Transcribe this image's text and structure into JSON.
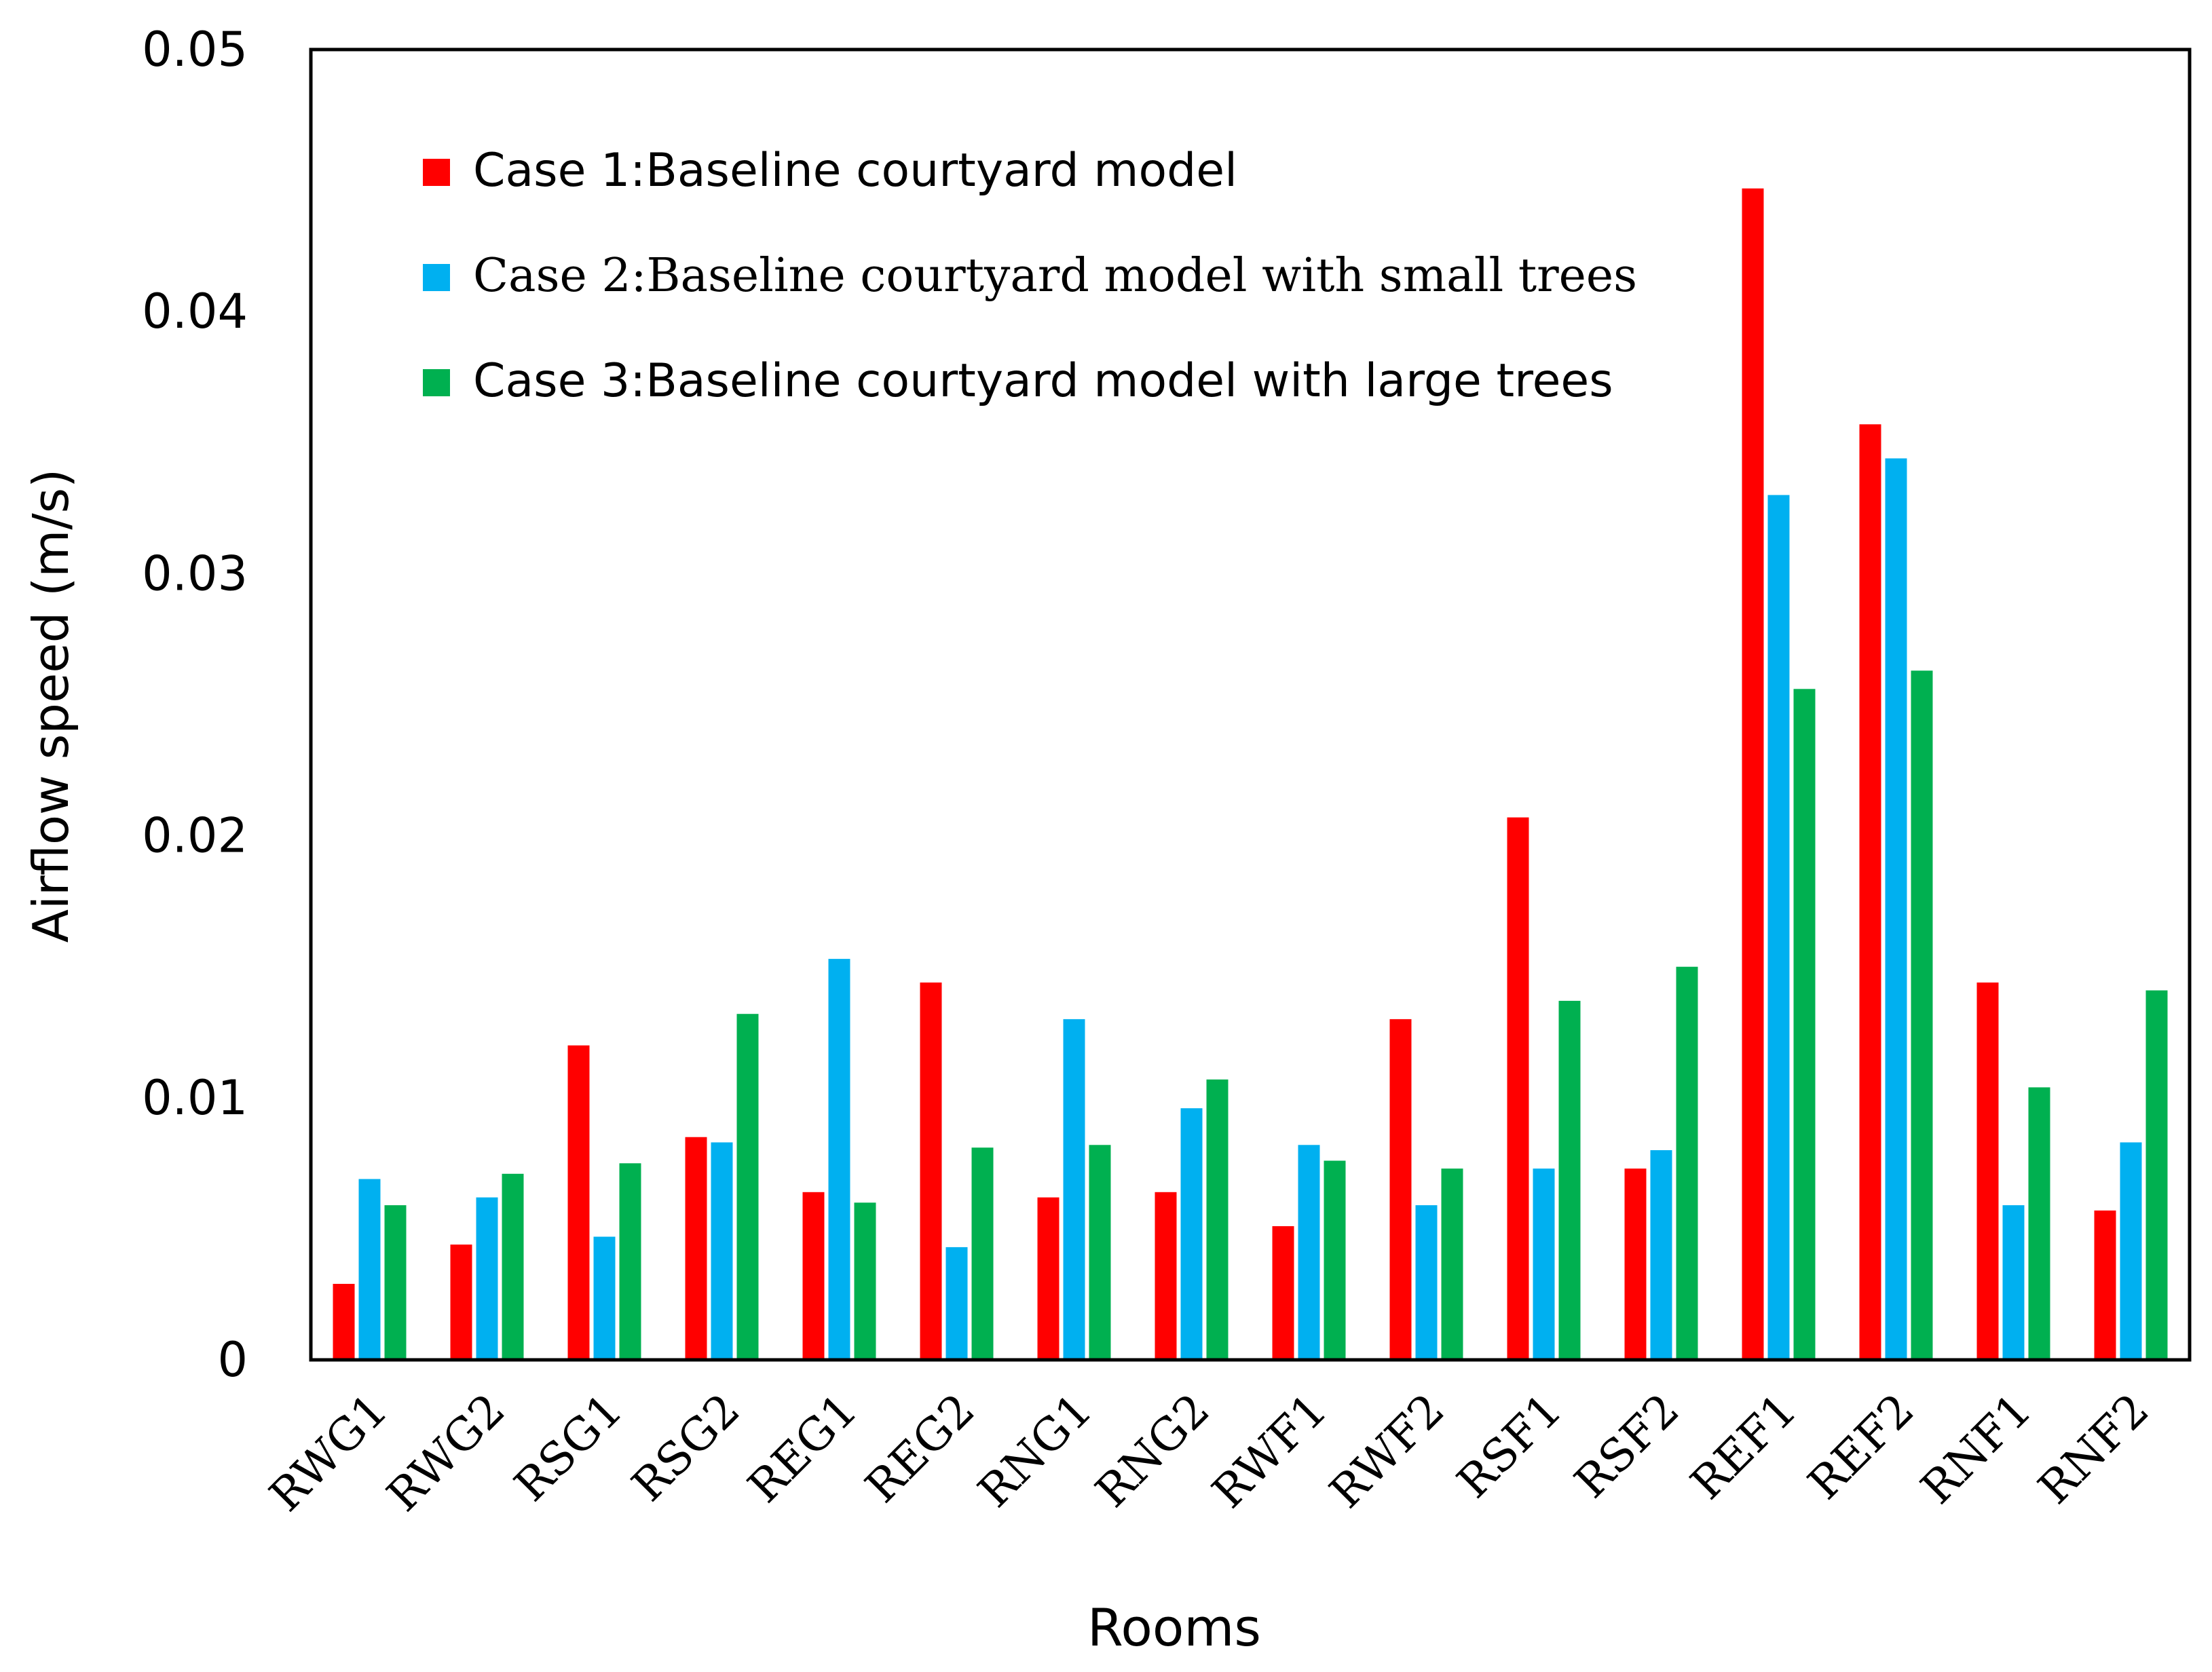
{
  "chart_data": {
    "type": "bar",
    "title": "",
    "xlabel": "Rooms",
    "ylabel": "Airflow speed (m/s)",
    "ylim": [
      0,
      0.05
    ],
    "yticks": [
      "0",
      "0.01",
      "0.02",
      "0.03",
      "0.04",
      "0.05"
    ],
    "grid": false,
    "legend_position": "top-left",
    "categories": [
      "RWG1",
      "RWG2",
      "RSG1",
      "RSG2",
      "REG1",
      "REG2",
      "RNG1",
      "RNG2",
      "RWF1",
      "RWF2",
      "RSF1",
      "RSF2",
      "REF1",
      "REF2",
      "RNF1",
      "RNF2"
    ],
    "series": [
      {
        "name": "Case 1:Baseline courtyard model",
        "color": "#ff0000",
        "values": [
          0.0029,
          0.0044,
          0.012,
          0.0085,
          0.0064,
          0.0144,
          0.0062,
          0.0064,
          0.0051,
          0.013,
          0.0207,
          0.0073,
          0.0447,
          0.0357,
          0.0144,
          0.0057
        ]
      },
      {
        "name": "Case 2:Baseline courtyard model with small trees",
        "color": "#00b0f0",
        "values": [
          0.0069,
          0.0062,
          0.0047,
          0.0083,
          0.0153,
          0.0043,
          0.013,
          0.0096,
          0.0082,
          0.0059,
          0.0073,
          0.008,
          0.033,
          0.0344,
          0.0059,
          0.0083
        ]
      },
      {
        "name": "Case 3:Baseline courtyard model with large trees",
        "color": "#00b050",
        "values": [
          0.0059,
          0.0071,
          0.0075,
          0.0132,
          0.006,
          0.0081,
          0.0082,
          0.0107,
          0.0076,
          0.0073,
          0.0137,
          0.015,
          0.0256,
          0.0263,
          0.0104,
          0.0141
        ]
      }
    ]
  }
}
